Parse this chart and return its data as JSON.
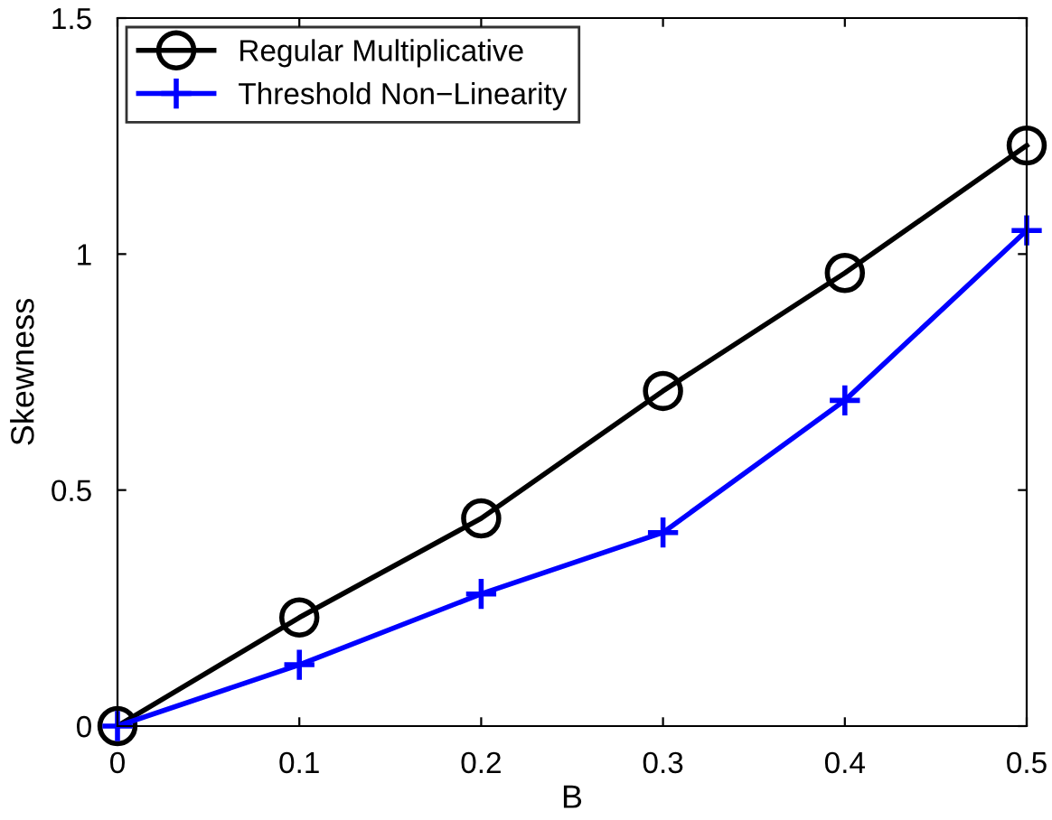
{
  "chart_data": {
    "type": "line",
    "xlabel": "B",
    "ylabel": "Skewness",
    "x": [
      0,
      0.1,
      0.2,
      0.3,
      0.4,
      0.5
    ],
    "series": [
      {
        "name": "Regular Multiplicative",
        "color": "#000000",
        "marker": "circle",
        "values": [
          0,
          0.23,
          0.44,
          0.71,
          0.96,
          1.23
        ]
      },
      {
        "name": "Threshold Non−Linearity",
        "color": "#0000ff",
        "marker": "cross",
        "values": [
          0,
          0.13,
          0.28,
          0.41,
          0.69,
          1.05
        ]
      }
    ],
    "xlim": [
      0,
      0.5
    ],
    "xticks": [
      0,
      0.1,
      0.2,
      0.3,
      0.4,
      0.5
    ],
    "ylim": [
      0,
      1.5
    ],
    "yticks": [
      0,
      0.5,
      1,
      1.5
    ],
    "grid": false,
    "legend": "top left",
    "line_style": "solid"
  }
}
